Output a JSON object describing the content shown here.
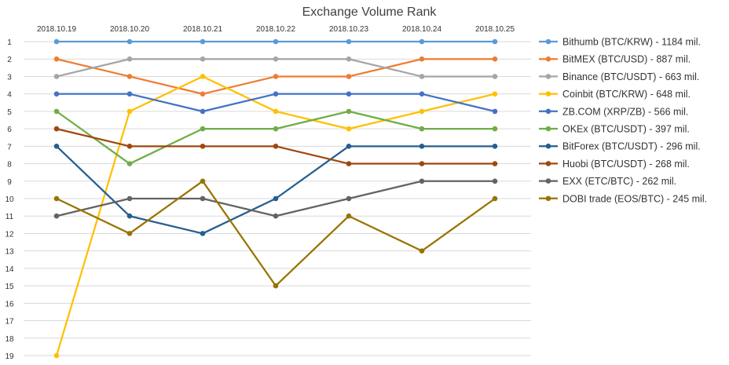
{
  "chart_data": {
    "type": "line",
    "title": "Exchange Volume Rank",
    "xlabel": "",
    "ylabel": "",
    "categories": [
      "2018.10.19",
      "2018.10.20",
      "2018.10.21",
      "2018.10.22",
      "2018.10.23",
      "2018.10.24",
      "2018.10.25"
    ],
    "ylim": [
      1,
      19
    ],
    "y_inverted": true,
    "y_ticks": [
      1,
      2,
      3,
      4,
      5,
      6,
      7,
      8,
      9,
      10,
      11,
      12,
      13,
      14,
      15,
      16,
      17,
      18,
      19
    ],
    "grid": true,
    "legend_position": "right",
    "series": [
      {
        "name": "Bithumb (BTC/KRW) - 1184 mil.",
        "color": "#5B9BD5",
        "values": [
          1,
          1,
          1,
          1,
          1,
          1,
          1
        ]
      },
      {
        "name": "BitMEX (BTC/USD) - 887 mil.",
        "color": "#ED7D31",
        "values": [
          2,
          3,
          4,
          3,
          3,
          2,
          2
        ]
      },
      {
        "name": "Binance (BTC/USDT) - 663 mil.",
        "color": "#A5A5A5",
        "values": [
          3,
          2,
          2,
          2,
          2,
          3,
          3
        ]
      },
      {
        "name": "Coinbit (BTC/KRW) - 648 mil.",
        "color": "#FFC000",
        "values": [
          19,
          5,
          3,
          5,
          6,
          5,
          4
        ]
      },
      {
        "name": "ZB.COM (XRP/ZB) - 566 mil.",
        "color": "#4472C4",
        "values": [
          4,
          4,
          5,
          4,
          4,
          4,
          5
        ]
      },
      {
        "name": "OKEx (BTC/USDT) - 397 mil.",
        "color": "#70AD47",
        "values": [
          5,
          8,
          6,
          6,
          5,
          6,
          6
        ]
      },
      {
        "name": "BitForex (BTC/USDT) - 296 mil.",
        "color": "#255E91",
        "values": [
          7,
          11,
          12,
          10,
          7,
          7,
          7
        ]
      },
      {
        "name": "Huobi (BTC/USDT) - 268 mil.",
        "color": "#9E480E",
        "values": [
          6,
          7,
          7,
          7,
          8,
          8,
          8
        ]
      },
      {
        "name": "EXX (ETC/BTC) - 262 mil.",
        "color": "#636363",
        "values": [
          11,
          10,
          10,
          11,
          10,
          9,
          9
        ]
      },
      {
        "name": "DOBI trade (EOS/BTC) - 245 mil.",
        "color": "#997300",
        "values": [
          10,
          12,
          9,
          15,
          11,
          13,
          10
        ]
      }
    ]
  }
}
